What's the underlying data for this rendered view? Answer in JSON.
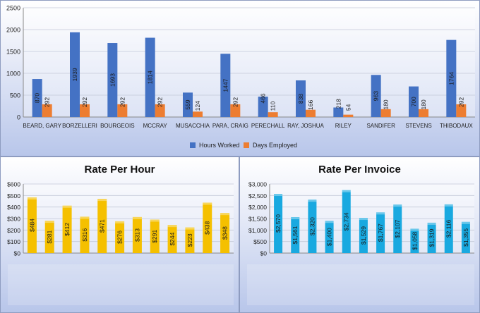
{
  "charts": {
    "main": {
      "chart_data": {
        "type": "bar",
        "title": "",
        "categories": [
          "BEARD, GARY",
          "BORZELLERI",
          "BOURGEOIS",
          "MCCRAY",
          "MUSACCHIA",
          "PARA, CRAIG",
          "PERECHALL",
          "RAY, JOSHUA",
          "RILEY",
          "SANDIFER",
          "STEVENS",
          "THIBODAUX"
        ],
        "series": [
          {
            "name": "Hours Worked",
            "values": [
              870,
              1939,
              1693,
              1814,
              559,
              1447,
              466,
              838,
              218,
              963,
              700,
              1764
            ],
            "labels": [
              "870",
              "1939",
              "1693",
              "1814",
              "559",
              "1447",
              "466",
              "838",
              "218",
              "963",
              "700",
              "1764"
            ]
          },
          {
            "name": "Days Employed",
            "values": [
              292,
              292,
              292,
              292,
              124,
              292,
              110,
              166,
              54,
              180,
              180,
              292
            ],
            "labels": [
              "292",
              "292",
              "292",
              "292",
              "124",
              "292",
              "110",
              "166",
              "54",
              "180",
              "180",
              "292"
            ]
          }
        ],
        "y_ticks": [
          "0",
          "500",
          "1000",
          "1500",
          "2000",
          "2500"
        ],
        "ylim": [
          0,
          2500
        ],
        "legend": "bottom",
        "colors": [
          "#4472c4",
          "#ed7d31"
        ]
      }
    },
    "rate_hour": {
      "chart_data": {
        "type": "bar",
        "title": "Rate Per Hour",
        "values": [
          484,
          281,
          412,
          316,
          471,
          276,
          313,
          291,
          244,
          223,
          438,
          348
        ],
        "labels": [
          "$484",
          "$281",
          "$412",
          "$316",
          "$471",
          "$276",
          "$313",
          "$291",
          "$244",
          "$223",
          "$438",
          "$348"
        ],
        "y_ticks": [
          "$0",
          "$100",
          "$200",
          "$300",
          "$400",
          "$500",
          "$600"
        ],
        "ylim": [
          0,
          600
        ],
        "color": "#f5c000"
      }
    },
    "rate_invoice": {
      "chart_data": {
        "type": "bar",
        "title": "Rate Per Invoice",
        "values": [
          2570,
          1561,
          2320,
          1400,
          2734,
          1529,
          1767,
          2107,
          1058,
          1319,
          2116,
          1355
        ],
        "labels": [
          "$2,570",
          "$1,561",
          "$2,320",
          "$1,400",
          "$2,734",
          "$1,529",
          "$1,767",
          "$2,107",
          "$1,058",
          "$1,319",
          "$2,116",
          "$1,355"
        ],
        "y_ticks": [
          "$0",
          "$500",
          "$1,000",
          "$1,500",
          "$2,000",
          "$2,500",
          "$3,000"
        ],
        "ylim": [
          0,
          3000
        ],
        "color": "#19a9e0"
      }
    }
  }
}
